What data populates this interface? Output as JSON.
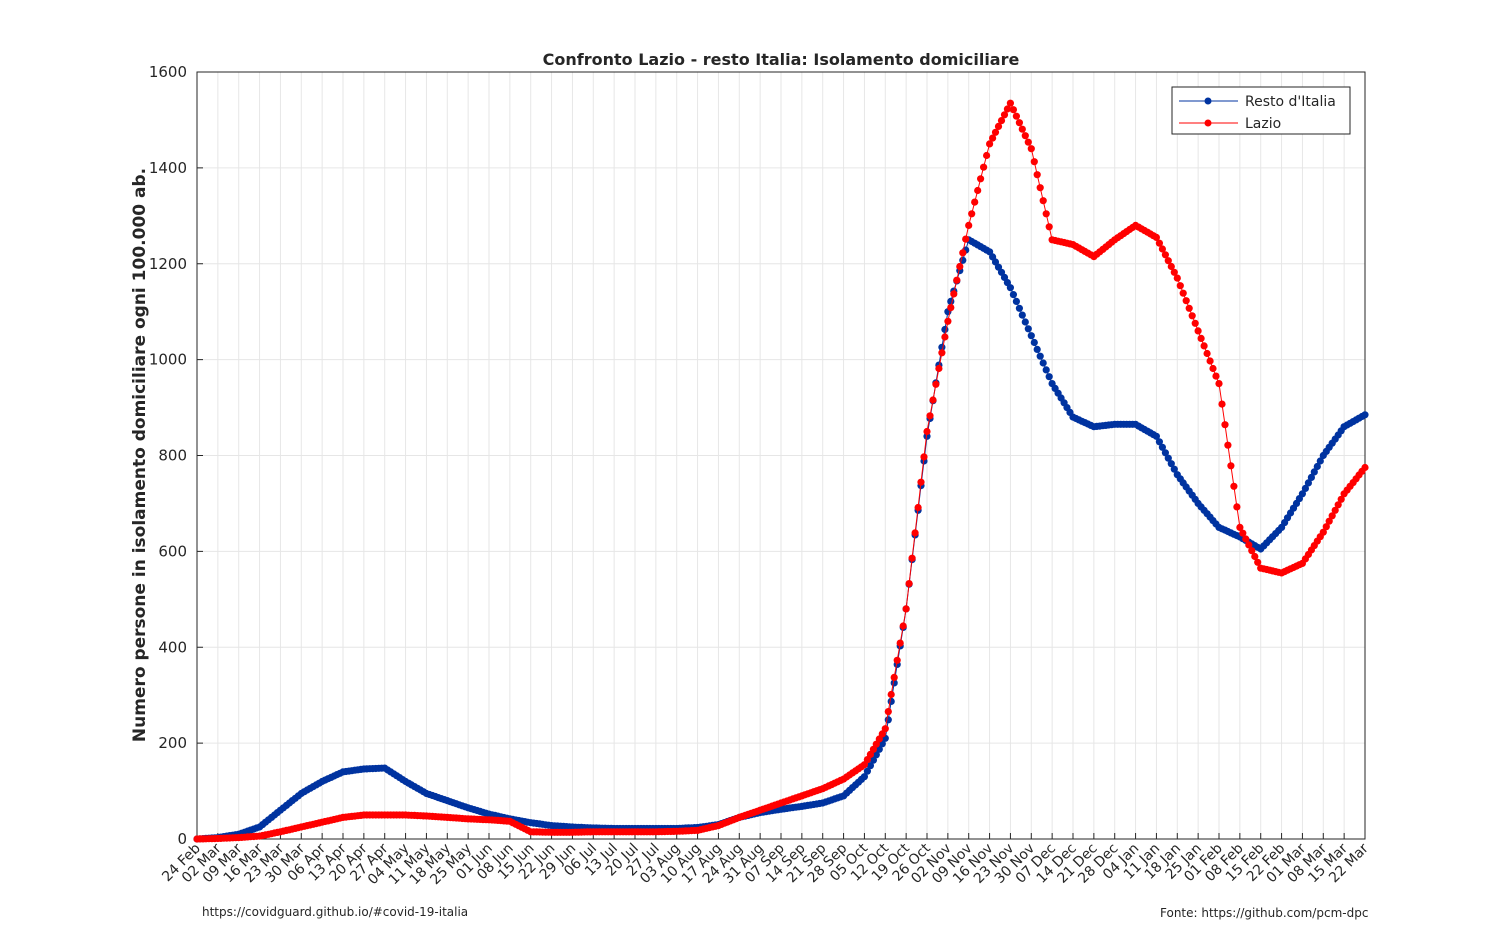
{
  "chart_data": {
    "type": "line",
    "title": "Confronto Lazio - resto Italia: Isolamento domiciliare",
    "xlabel": "",
    "ylabel": "Numero persone in isolamento domiciliare ogni 100.000 ab.",
    "ylim": [
      0,
      1600
    ],
    "yticks": [
      0,
      200,
      400,
      600,
      800,
      1000,
      1200,
      1400,
      1600
    ],
    "xlim": [
      "2020-02-24",
      "2021-03-22"
    ],
    "xtick_labels": [
      "24 Feb",
      "02 Mar",
      "09 Mar",
      "16 Mar",
      "23 Mar",
      "30 Mar",
      "06 Apr",
      "13 Apr",
      "20 Apr",
      "27 Apr",
      "04 May",
      "11 May",
      "18 May",
      "25 May",
      "01 Jun",
      "08 Jun",
      "15 Jun",
      "22 Jun",
      "29 Jun",
      "06 Jul",
      "13 Jul",
      "20 Jul",
      "27 Jul",
      "03 Aug",
      "10 Aug",
      "17 Aug",
      "24 Aug",
      "31 Aug",
      "07 Sep",
      "14 Sep",
      "21 Sep",
      "28 Sep",
      "05 Oct",
      "12 Oct",
      "19 Oct",
      "26 Oct",
      "02 Nov",
      "09 Nov",
      "16 Nov",
      "23 Nov",
      "30 Nov",
      "07 Dec",
      "14 Dec",
      "21 Dec",
      "28 Dec",
      "04 Jan",
      "11 Jan",
      "18 Jan",
      "25 Jan",
      "01 Feb",
      "08 Feb",
      "15 Feb",
      "22 Feb",
      "01 Mar",
      "08 Mar",
      "15 Mar",
      "22 Mar"
    ],
    "grid": true,
    "legend_position": "top-right",
    "series": [
      {
        "name": "Resto d'Italia",
        "color": "#0033a0",
        "marker": "circle",
        "x": [
          "2020-02-24",
          "2020-03-02",
          "2020-03-09",
          "2020-03-16",
          "2020-03-23",
          "2020-03-30",
          "2020-04-06",
          "2020-04-13",
          "2020-04-20",
          "2020-04-27",
          "2020-05-04",
          "2020-05-11",
          "2020-05-18",
          "2020-05-25",
          "2020-06-01",
          "2020-06-08",
          "2020-06-15",
          "2020-06-22",
          "2020-06-29",
          "2020-07-06",
          "2020-07-13",
          "2020-07-20",
          "2020-07-27",
          "2020-08-03",
          "2020-08-10",
          "2020-08-17",
          "2020-08-24",
          "2020-08-31",
          "2020-09-07",
          "2020-09-14",
          "2020-09-21",
          "2020-09-28",
          "2020-10-05",
          "2020-10-12",
          "2020-10-19",
          "2020-10-26",
          "2020-11-02",
          "2020-11-09",
          "2020-11-16",
          "2020-11-23",
          "2020-11-30",
          "2020-12-07",
          "2020-12-14",
          "2020-12-21",
          "2020-12-28",
          "2021-01-04",
          "2021-01-11",
          "2021-01-18",
          "2021-01-25",
          "2021-02-01",
          "2021-02-08",
          "2021-02-15",
          "2021-02-22",
          "2021-03-01",
          "2021-03-08",
          "2021-03-15",
          "2021-03-22"
        ],
        "y": [
          0,
          3,
          10,
          25,
          60,
          95,
          120,
          140,
          146,
          148,
          120,
          95,
          80,
          65,
          52,
          42,
          34,
          28,
          25,
          23,
          22,
          22,
          22,
          22,
          24,
          30,
          45,
          55,
          62,
          68,
          75,
          90,
          130,
          210,
          480,
          840,
          1100,
          1250,
          1225,
          1150,
          1050,
          950,
          880,
          860,
          865,
          865,
          840,
          760,
          700,
          650,
          630,
          605,
          650,
          720,
          800,
          860,
          885
        ]
      },
      {
        "name": "Lazio",
        "color": "#ff0000",
        "marker": "circle",
        "x": [
          "2020-02-24",
          "2020-03-02",
          "2020-03-09",
          "2020-03-16",
          "2020-03-23",
          "2020-03-30",
          "2020-04-06",
          "2020-04-13",
          "2020-04-20",
          "2020-04-27",
          "2020-05-04",
          "2020-05-11",
          "2020-05-18",
          "2020-05-25",
          "2020-06-01",
          "2020-06-08",
          "2020-06-15",
          "2020-06-22",
          "2020-06-29",
          "2020-07-06",
          "2020-07-13",
          "2020-07-20",
          "2020-07-27",
          "2020-08-03",
          "2020-08-10",
          "2020-08-17",
          "2020-08-24",
          "2020-08-31",
          "2020-09-07",
          "2020-09-14",
          "2020-09-21",
          "2020-09-28",
          "2020-10-05",
          "2020-10-12",
          "2020-10-19",
          "2020-10-26",
          "2020-11-02",
          "2020-11-09",
          "2020-11-16",
          "2020-11-23",
          "2020-11-30",
          "2020-12-07",
          "2020-12-14",
          "2020-12-21",
          "2020-12-28",
          "2021-01-04",
          "2021-01-11",
          "2021-01-18",
          "2021-01-25",
          "2021-02-01",
          "2021-02-08",
          "2021-02-15",
          "2021-02-22",
          "2021-03-01",
          "2021-03-08",
          "2021-03-15",
          "2021-03-22"
        ],
        "y": [
          0,
          1,
          3,
          6,
          15,
          25,
          35,
          45,
          50,
          50,
          50,
          48,
          45,
          42,
          40,
          37,
          15,
          14,
          14,
          15,
          15,
          15,
          15,
          16,
          18,
          28,
          45,
          60,
          75,
          90,
          105,
          125,
          155,
          230,
          480,
          850,
          1080,
          1280,
          1450,
          1535,
          1440,
          1250,
          1240,
          1215,
          1250,
          1280,
          1255,
          1170,
          1060,
          950,
          650,
          565,
          555,
          575,
          640,
          720,
          775
        ]
      }
    ]
  },
  "footer": {
    "left": "https://covidguard.github.io/#covid-19-italia",
    "right": "Fonte: https://github.com/pcm-dpc"
  },
  "colors": {
    "resto_italia": "#0033a0",
    "lazio": "#ff0000",
    "grid": "#e6e6e6",
    "axis": "#262626"
  }
}
